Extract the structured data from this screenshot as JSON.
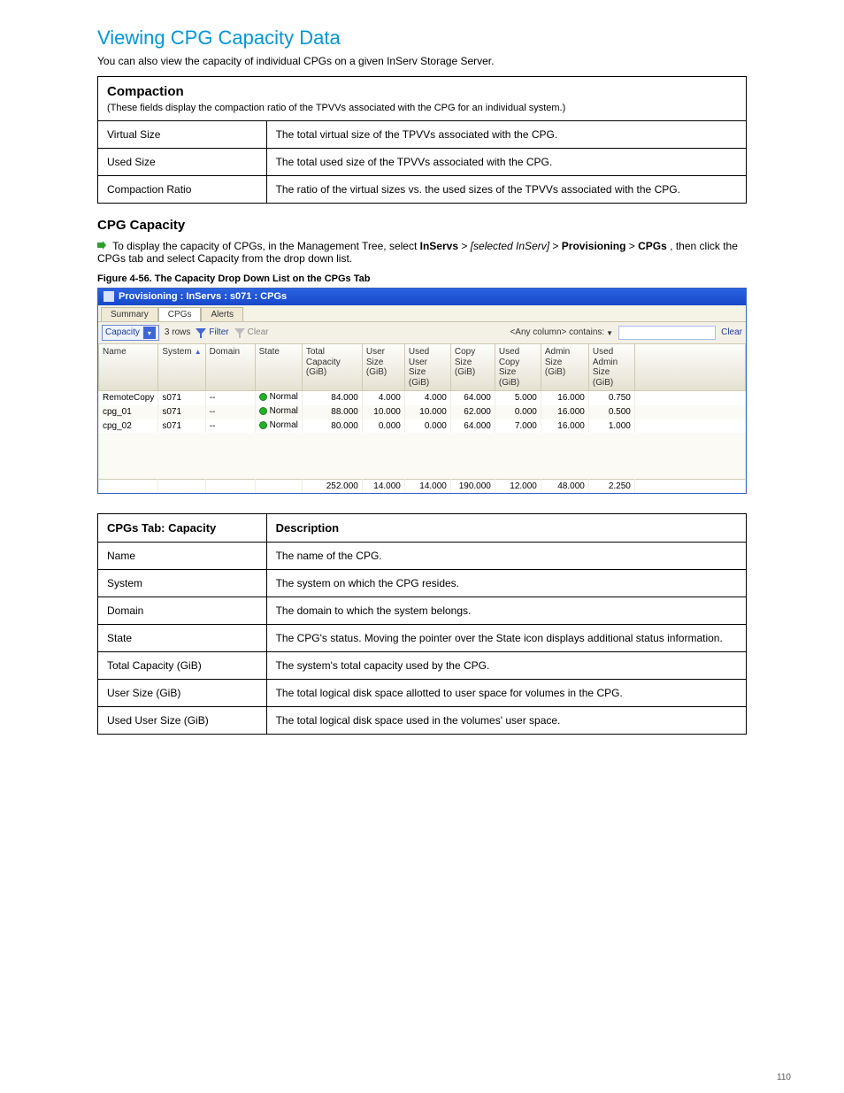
{
  "page": {
    "title": "Viewing CPG Capacity Data",
    "intro": "You can also view the capacity of individual CPGs on a given InServ Storage Server.",
    "number": "110"
  },
  "compactTable": {
    "header_col1": "Compaction",
    "header_col2": "",
    "rows": [
      {
        "label": "Virtual Size",
        "desc": "The total virtual size of the TPVVs associated with the CPG."
      },
      {
        "label": "Used Size",
        "desc": "The total used size of the TPVVs associated with the CPG."
      },
      {
        "label": "Compaction Ratio",
        "desc": "The ratio of the virtual sizes vs. the used sizes of the TPVVs associated with the CPG."
      }
    ]
  },
  "nav": {
    "prefix": "To display the capacity of CPGs, in the Management Tree, select ",
    "path1_strong": "InServs",
    "mid1": " ",
    "path2_em": "[selected InServ]",
    "mid2": " ",
    "path3_strong": "Provisioning",
    "mid3": " ",
    "path4_strong": "CPGs",
    "suffix": ", then click the CPGs tab and select Capacity from the drop down list."
  },
  "figure_caption": "Figure 4-56.  The Capacity Drop Down List on the CPGs Tab",
  "shot": {
    "title": "Provisioning : InServs : s071 : CPGs",
    "tabs": [
      "Summary",
      "CPGs",
      "Alerts"
    ],
    "active_tab": 1,
    "dropdown": "Capacity",
    "rows_text": "3 rows",
    "filter_label": "Filter",
    "clear_inline_label": "Clear",
    "anycol_label": "<Any column> contains:",
    "clear_btn": "Clear",
    "columns": [
      "Name",
      "System",
      "Domain",
      "State",
      "Total Capacity (GiB)",
      "User Size (GiB)",
      "Used User Size (GiB)",
      "Copy Size (GiB)",
      "Used Copy Size (GiB)",
      "Admin Size (GiB)",
      "Used Admin Size (GiB)"
    ],
    "sort_col": 1,
    "state_label": "Normal",
    "state_color": "#26b02a",
    "rows": [
      {
        "name": "RemoteCopy",
        "system": "s071",
        "domain": "--",
        "state": "Normal",
        "totcap": "84.000",
        "usersz": "4.000",
        "usedusr": "4.000",
        "copysz": "64.000",
        "usedcopy": "5.000",
        "adminsz": "16.000",
        "usedadmin": "0.750"
      },
      {
        "name": "cpg_01",
        "system": "s071",
        "domain": "--",
        "state": "Normal",
        "totcap": "88.000",
        "usersz": "10.000",
        "usedusr": "10.000",
        "copysz": "62.000",
        "usedcopy": "0.000",
        "adminsz": "16.000",
        "usedadmin": "0.500"
      },
      {
        "name": "cpg_02",
        "system": "s071",
        "domain": "--",
        "state": "Normal",
        "totcap": "80.000",
        "usersz": "0.000",
        "usedusr": "0.000",
        "copysz": "64.000",
        "usedcopy": "7.000",
        "adminsz": "16.000",
        "usedadmin": "1.000"
      }
    ],
    "totals": {
      "totcap": "252.000",
      "usersz": "14.000",
      "usedusr": "14.000",
      "copysz": "190.000",
      "usedcopy": "12.000",
      "adminsz": "48.000",
      "usedadmin": "2.250"
    }
  },
  "capTable": {
    "header_col1": "CPGs Tab: Capacity",
    "header_col2": "Description",
    "rows": [
      {
        "label": "Name",
        "desc": "The name of the CPG."
      },
      {
        "label": "System",
        "desc": "The system on which the CPG resides."
      },
      {
        "label": "Domain",
        "desc": "The domain to which the system belongs."
      },
      {
        "label": "State",
        "desc": "The CPG's status. Moving the pointer over the State icon displays additional status information."
      },
      {
        "label": "Total Capacity (GiB)",
        "desc": "The system's total capacity used by the CPG."
      },
      {
        "label": "User Size (GiB)",
        "desc": "The total logical disk space allotted to user space for volumes in the CPG."
      },
      {
        "label": "Used User Size (GiB)",
        "desc": "The total logical disk space used in the volumes' user space."
      }
    ]
  }
}
